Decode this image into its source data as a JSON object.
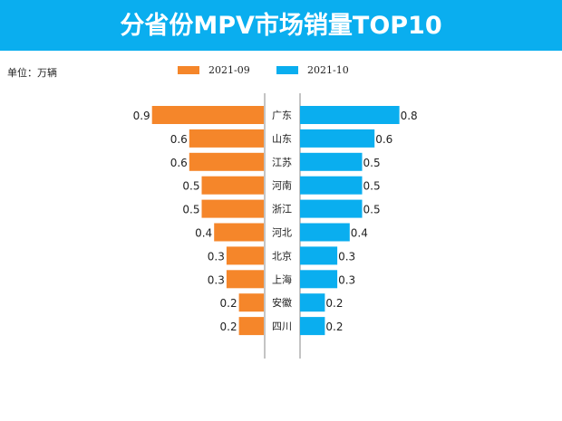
{
  "chart_data": {
    "type": "bar",
    "title": "分省份MPV市场销量TOP10",
    "unit_label": "单位：万辆",
    "categories": [
      "广东",
      "山东",
      "江苏",
      "河南",
      "浙江",
      "河北",
      "北京",
      "上海",
      "安徽",
      "四川"
    ],
    "series": [
      {
        "name": "2021-09",
        "color": "#f5862a",
        "values": [
          0.9,
          0.6,
          0.6,
          0.5,
          0.5,
          0.4,
          0.3,
          0.3,
          0.2,
          0.2
        ]
      },
      {
        "name": "2021-10",
        "color": "#0aaeef",
        "values": [
          0.8,
          0.6,
          0.5,
          0.5,
          0.5,
          0.4,
          0.3,
          0.3,
          0.2,
          0.2
        ]
      }
    ],
    "legend": "top-center",
    "grid": false
  }
}
